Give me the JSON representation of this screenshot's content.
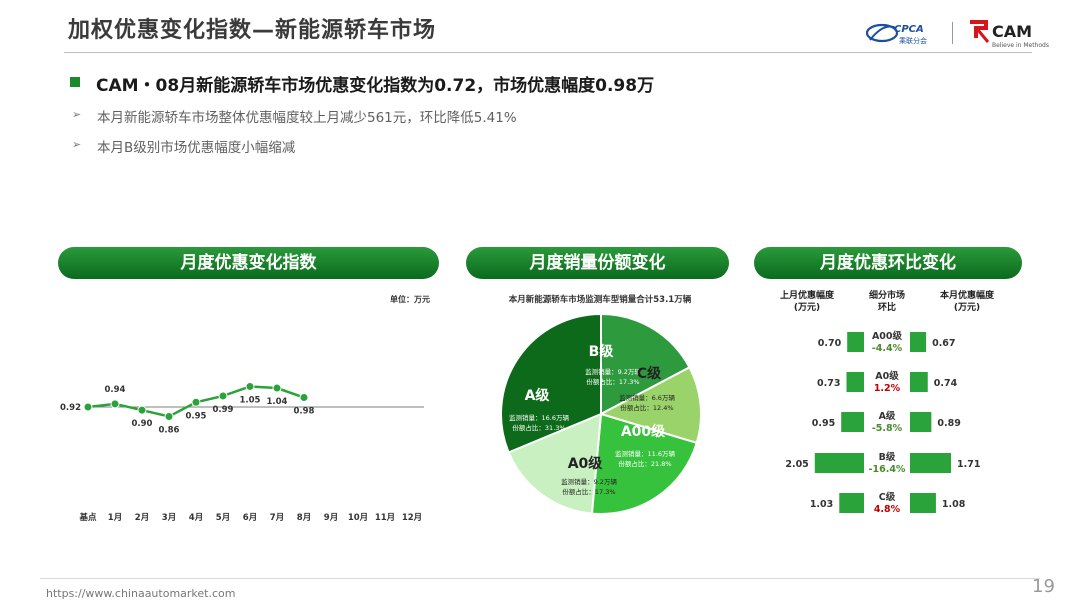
{
  "page": {
    "title": "加权优惠变化指数—新能源轿车市场",
    "headline": "CAM・08月新能源轿车市场优惠变化指数为0.72，市场优惠幅度0.98万",
    "bullets": [
      "本月新能源轿车市场整体优惠幅度较上月减少561元，环比降低5.41%",
      "本月B级别市场优惠幅度小幅缩减"
    ],
    "bullet_glyph": "➢",
    "logos": {
      "cpca_text": "CPCA",
      "cpca_sub": "乘联分会",
      "cam_text": "CAM",
      "cam_slogan": "Believe in Methods"
    },
    "footer_url": "https://www.chinaautomarket.com",
    "page_number": "19"
  },
  "colors": {
    "accent_green": "#1a8a2a",
    "header_dark": "#0b6a1e",
    "positive_green": "#4a8a2a",
    "negative_red": "#c00000"
  },
  "panels": {
    "index": {
      "header": "月度优惠变化指数",
      "unit": "单位：万元"
    },
    "share": {
      "header": "月度销量份额变化",
      "subtitle": "本月新能源轿车市场监测车型销量合计53.1万辆"
    },
    "mom": {
      "header": "月度优惠环比变化",
      "col_left": "上月优惠幅度",
      "col_left_unit": "(万元)",
      "col_mid": "细分市场",
      "col_mid_unit": "环比",
      "col_right": "本月优惠幅度",
      "col_right_unit": "(万元)"
    }
  },
  "chart_data": [
    {
      "type": "line",
      "x": [
        "基点",
        "1月",
        "2月",
        "3月",
        "4月",
        "5月",
        "6月",
        "7月",
        "8月",
        "9月",
        "10月",
        "11月",
        "12月"
      ],
      "series": [
        {
          "values": [
            0.92,
            0.94,
            0.9,
            0.86,
            0.95,
            0.99,
            1.05,
            1.04,
            0.98,
            null,
            null,
            null,
            null
          ]
        }
      ],
      "baseline": 0.92,
      "ylim": [
        0.6,
        1.3
      ],
      "grid": false
    },
    {
      "type": "pie",
      "title": "本月新能源轿车市场监测车型销量合计53.1万辆",
      "slices": [
        {
          "label": "B级",
          "volume_text": "监测销量：9.2万辆",
          "share_text": "份额占比：17.3%",
          "value": 17.3,
          "color": "#2e9a3e"
        },
        {
          "label": "C级",
          "volume_text": "监测销量：6.6万辆",
          "share_text": "份额占比：12.4%",
          "value": 12.4,
          "color": "#9ad36a"
        },
        {
          "label": "A00级",
          "volume_text": "监测销量：11.6万辆",
          "share_text": "份额占比：21.8%",
          "value": 21.8,
          "color": "#37c23d"
        },
        {
          "label": "A0级",
          "volume_text": "监测销量：9.2万辆",
          "share_text": "份额占比：17.3%",
          "value": 17.3,
          "color": "#c8f0c0"
        },
        {
          "label": "A级",
          "volume_text": "监测销量：16.6万辆",
          "share_text": "份额占比：31.3%",
          "value": 31.3,
          "color": "#0d6a1a"
        }
      ]
    },
    {
      "type": "bar",
      "segments": [
        {
          "name": "A00级",
          "last": 0.7,
          "current": 0.67,
          "mom": "-4.4%",
          "mom_sign": "neg"
        },
        {
          "name": "A0级",
          "last": 0.73,
          "current": 0.74,
          "mom": "1.2%",
          "mom_sign": "pos"
        },
        {
          "name": "A级",
          "last": 0.95,
          "current": 0.89,
          "mom": "-5.8%",
          "mom_sign": "neg"
        },
        {
          "name": "B级",
          "last": 2.05,
          "current": 1.71,
          "mom": "-16.4%",
          "mom_sign": "neg"
        },
        {
          "name": "C级",
          "last": 1.03,
          "current": 1.08,
          "mom": "4.8%",
          "mom_sign": "pos"
        }
      ]
    }
  ]
}
